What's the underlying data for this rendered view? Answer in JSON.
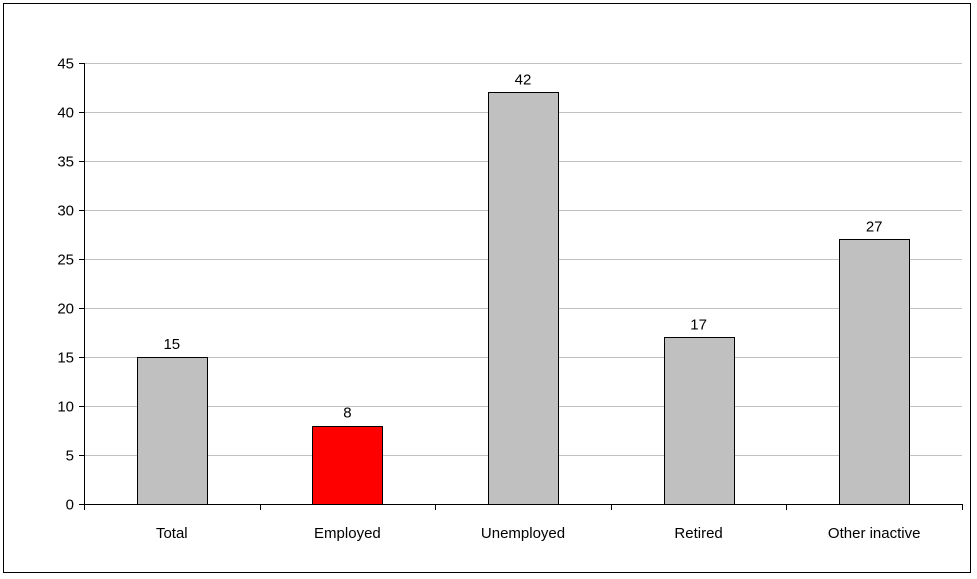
{
  "chart_data": {
    "type": "bar",
    "categories": [
      "Total",
      "Employed",
      "Unemployed",
      "Retired",
      "Other inactive"
    ],
    "values": [
      15,
      8,
      42,
      17,
      27
    ],
    "data_labels": [
      "15",
      "8",
      "42",
      "17",
      "27"
    ],
    "ylim": [
      0,
      45
    ],
    "yticks": [
      0,
      5,
      10,
      15,
      20,
      25,
      30,
      35,
      40,
      45
    ],
    "ytick_labels": [
      "0",
      "5",
      "10",
      "15",
      "20",
      "25",
      "30",
      "35",
      "40",
      "45"
    ],
    "grid": true,
    "legend": "none",
    "colors": {
      "default_bar": "#c0c0c0",
      "highlight_bar": "#ff0000",
      "gridline": "#c0c0c0",
      "axis": "#000000"
    },
    "highlight_index": 1
  }
}
